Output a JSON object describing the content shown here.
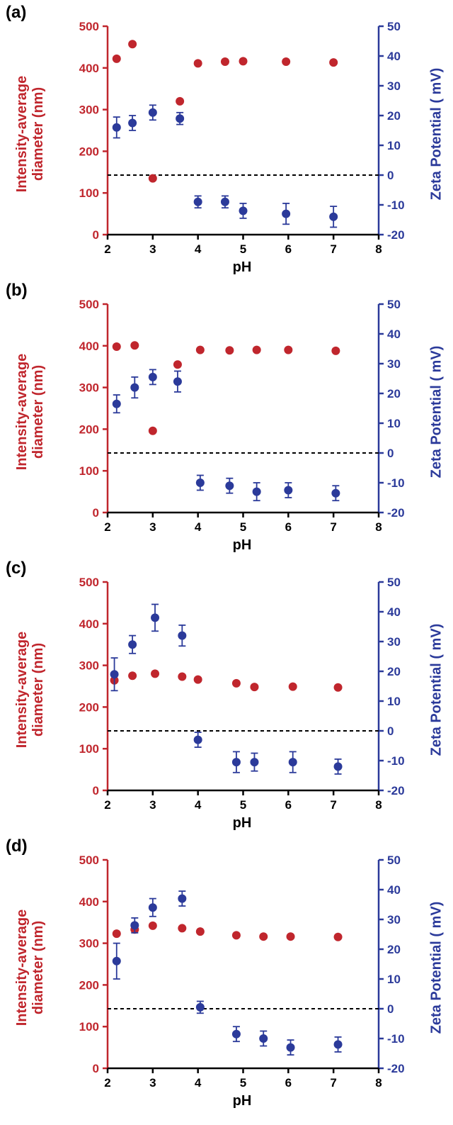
{
  "colors": {
    "diameter": "#c0262d",
    "zeta": "#2b3a9a",
    "axis_x": "#000000",
    "zero_line": "#000000"
  },
  "chart_data": [
    {
      "panel_label": "(a)",
      "type": "scatter",
      "xlabel": "pH",
      "ylabel_left": [
        "Intensity-average",
        "diameter (nm)"
      ],
      "ylabel_right": "Zeta Potential ( mV)",
      "xlim": [
        2,
        8
      ],
      "ylim_left": [
        0,
        500
      ],
      "ylim_right": [
        -20,
        50
      ],
      "x_ticks": [
        2,
        3,
        4,
        5,
        6,
        7,
        8
      ],
      "y_ticks_left": [
        0,
        100,
        200,
        300,
        400,
        500
      ],
      "y_ticks_right": [
        -20,
        -10,
        0,
        10,
        20,
        30,
        40,
        50
      ],
      "zero_line": true,
      "series": [
        {
          "axis": "left",
          "marker": "circle",
          "points": [
            [
              2.2,
              422
            ],
            [
              2.55,
              457
            ],
            [
              3.0,
              135
            ],
            [
              3.6,
              320
            ],
            [
              4.0,
              411
            ],
            [
              4.6,
              415
            ],
            [
              5.0,
              416
            ],
            [
              5.95,
              415
            ],
            [
              7.0,
              413
            ]
          ]
        },
        {
          "axis": "right",
          "marker": "circle-errorbar",
          "points": [
            [
              2.2,
              16,
              3.5
            ],
            [
              2.55,
              17.5,
              2.5
            ],
            [
              3.0,
              21,
              2.5
            ],
            [
              3.6,
              19,
              2
            ],
            [
              4.0,
              -9,
              2
            ],
            [
              4.6,
              -9,
              2
            ],
            [
              5.0,
              -12,
              2.5
            ],
            [
              5.95,
              -13,
              3.5
            ],
            [
              7.0,
              -14,
              3.5
            ]
          ]
        }
      ]
    },
    {
      "panel_label": "(b)",
      "type": "scatter",
      "xlabel": "pH",
      "ylabel_left": [
        "Intensity-average",
        "diameter (nm)"
      ],
      "ylabel_right": "Zeta Potential ( mV)",
      "xlim": [
        2,
        8
      ],
      "ylim_left": [
        0,
        500
      ],
      "ylim_right": [
        -20,
        50
      ],
      "x_ticks": [
        2,
        3,
        4,
        5,
        6,
        7,
        8
      ],
      "y_ticks_left": [
        0,
        100,
        200,
        300,
        400,
        500
      ],
      "y_ticks_right": [
        -20,
        -10,
        0,
        10,
        20,
        30,
        40,
        50
      ],
      "zero_line": true,
      "series": [
        {
          "axis": "left",
          "marker": "circle",
          "points": [
            [
              2.2,
              398
            ],
            [
              2.6,
              401
            ],
            [
              3.0,
              196
            ],
            [
              3.55,
              355
            ],
            [
              4.05,
              390
            ],
            [
              4.7,
              389
            ],
            [
              5.3,
              390
            ],
            [
              6.0,
              390
            ],
            [
              7.05,
              388
            ]
          ]
        },
        {
          "axis": "right",
          "marker": "circle-errorbar",
          "points": [
            [
              2.2,
              16.5,
              3
            ],
            [
              2.6,
              22,
              3.5
            ],
            [
              3.0,
              25.5,
              2.5
            ],
            [
              3.55,
              24,
              3.5
            ],
            [
              4.05,
              -10,
              2.5
            ],
            [
              4.7,
              -11,
              2.5
            ],
            [
              5.3,
              -13,
              3
            ],
            [
              6.0,
              -12.5,
              2.5
            ],
            [
              7.05,
              -13.5,
              2.5
            ]
          ]
        }
      ]
    },
    {
      "panel_label": "(c)",
      "type": "scatter",
      "xlabel": "pH",
      "ylabel_left": [
        "Intensity-average",
        "diameter (nm)"
      ],
      "ylabel_right": "Zeta Potential ( mV)",
      "xlim": [
        2,
        8
      ],
      "ylim_left": [
        0,
        500
      ],
      "ylim_right": [
        -20,
        50
      ],
      "x_ticks": [
        2,
        3,
        4,
        5,
        6,
        7,
        8
      ],
      "y_ticks_left": [
        0,
        100,
        200,
        300,
        400,
        500
      ],
      "y_ticks_right": [
        -20,
        -10,
        0,
        10,
        20,
        30,
        40,
        50
      ],
      "zero_line": true,
      "series": [
        {
          "axis": "left",
          "marker": "circle",
          "points": [
            [
              2.15,
              264
            ],
            [
              2.55,
              275
            ],
            [
              3.05,
              280
            ],
            [
              3.65,
              273
            ],
            [
              4.0,
              266
            ],
            [
              4.85,
              257
            ],
            [
              5.25,
              248
            ],
            [
              6.1,
              249
            ],
            [
              7.1,
              247
            ]
          ]
        },
        {
          "axis": "right",
          "marker": "circle-errorbar",
          "points": [
            [
              2.15,
              19,
              5.5
            ],
            [
              2.55,
              29,
              3
            ],
            [
              3.05,
              38,
              4.5
            ],
            [
              3.65,
              32,
              3.5
            ],
            [
              4.0,
              -3,
              2.5
            ],
            [
              4.85,
              -10.5,
              3.5
            ],
            [
              5.25,
              -10.5,
              3
            ],
            [
              6.1,
              -10.5,
              3.5
            ],
            [
              7.1,
              -12,
              2.5
            ]
          ]
        }
      ]
    },
    {
      "panel_label": "(d)",
      "type": "scatter",
      "xlabel": "pH",
      "ylabel_left": [
        "Intensity-average",
        "diameter (nm)"
      ],
      "ylabel_right": "Zeta Potential ( mV)",
      "xlim": [
        2,
        8
      ],
      "ylim_left": [
        0,
        500
      ],
      "ylim_right": [
        -20,
        50
      ],
      "x_ticks": [
        2,
        3,
        4,
        5,
        6,
        7,
        8
      ],
      "y_ticks_left": [
        0,
        100,
        200,
        300,
        400,
        500
      ],
      "y_ticks_right": [
        -20,
        -10,
        0,
        10,
        20,
        30,
        40,
        50
      ],
      "zero_line": true,
      "series": [
        {
          "axis": "left",
          "marker": "circle",
          "points": [
            [
              2.2,
              323
            ],
            [
              2.6,
              333
            ],
            [
              3.0,
              342
            ],
            [
              3.65,
              336
            ],
            [
              4.05,
              328
            ],
            [
              4.85,
              319
            ],
            [
              5.45,
              316
            ],
            [
              6.05,
              316
            ],
            [
              7.1,
              315
            ]
          ]
        },
        {
          "axis": "right",
          "marker": "circle-errorbar",
          "points": [
            [
              2.2,
              16,
              6
            ],
            [
              2.6,
              28,
              2.5
            ],
            [
              3.0,
              34,
              3
            ],
            [
              3.65,
              37,
              2.5
            ],
            [
              4.05,
              0.5,
              2
            ],
            [
              4.85,
              -8.5,
              2.5
            ],
            [
              5.45,
              -10,
              2.5
            ],
            [
              6.05,
              -13,
              2.5
            ],
            [
              7.1,
              -12,
              2.5
            ]
          ]
        }
      ]
    }
  ]
}
